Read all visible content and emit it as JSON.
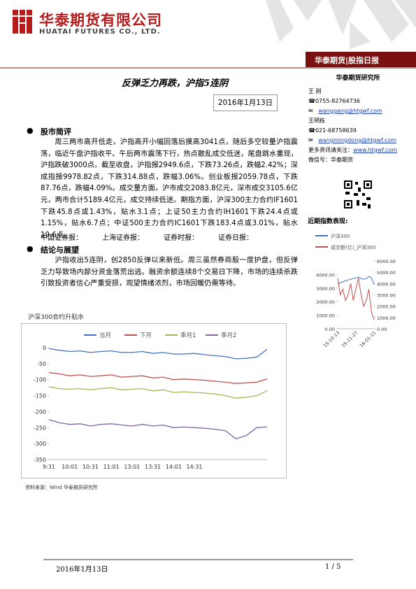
{
  "header": {
    "company": "华泰期货有限公司",
    "company_en": "HUATAI FUTURES CO., LTD.",
    "band": "华泰期货|股指日报"
  },
  "title": "反弹乏力再跌，沪指5连阴",
  "date": "2016年1月13日",
  "sections": [
    {
      "heading": "股市简评",
      "text": "周三两市高开低走，沪指高开小幅回落后摸高3041点，随后多空较量沪指震荡，临近午盘沪指收平。午后两市震荡下行，热点散乱成交低迷，尾盘跳水重现，沪指跌破3000点。截至收盘，沪指报2949.6点，下跌73.26点，跌幅2.42%；深成指报9978.82点，下跌314.88点，跌幅3.06%。创业板报2059.78点，下跌87.76点，跌幅4.09%。成交量方面，沪市成交2083.8亿元，深市成交3105.6亿元，两市合计5189.4亿元，成交持续低迷。期指方面，沪深300主力合约IF1601下跌45.8点或1.43%，贴水3.1点；上证50主力合约IH1601下跌24.4点或1.15%，贴水6.7点；中证500主力合约IC1601下跌183.4点或3.01%，贴水19.6点。"
    },
    {
      "heading": "结论与展望",
      "text": "沪指收出5连阴，创2850反弹以来新低。周三虽然券商股一度护盘，但反弹乏力导致场内部分资金落荒出逃。融资余额连续8个交易日下降，市场的连续杀跌引致投资者信心严重受损，观望情绪浓烈，市场回暖仍需等待。"
    }
  ],
  "press": [
    "中国证券报：",
    "上海证券报：",
    "证券时报：",
    "证券日报："
  ],
  "source": "资料来源：Wind  华泰期货研究所",
  "sidebar": {
    "institute": "华泰期货研究所",
    "contacts": [
      {
        "name": "王  刚",
        "phone": "0755-82764736",
        "email": "wanggang@htgwf.com"
      },
      {
        "name": "王明栋",
        "phone": "021-68758639",
        "email": "wangmingdong@htgwf.com"
      }
    ],
    "more_label": "更多资讯请关注：",
    "website": "www.htgwf.com",
    "wechat": "微信号：华泰期货",
    "index_heading": "近期指数表现:"
  },
  "footer": {
    "date": "2016年1月13日",
    "page": "1 / 5"
  },
  "chart_data": [
    {
      "type": "line",
      "title": "沪深300合约升贴水",
      "categories": [
        "9:31",
        null,
        "10:01",
        null,
        "10:31",
        null,
        "11:01",
        null,
        "13:01",
        null,
        "13:31",
        null,
        "14:01",
        null,
        "14:31",
        null,
        null,
        null,
        null,
        null,
        null,
        null
      ],
      "series": [
        {
          "name": "当月",
          "color": "#4472c4",
          "values": [
            -3,
            -8,
            -12,
            -10,
            -15,
            -12,
            -10,
            -15,
            -15,
            -12,
            -18,
            -15,
            -20,
            -20,
            -18,
            -22,
            -25,
            -28,
            -35,
            -33,
            -30,
            -5
          ]
        },
        {
          "name": "下月",
          "color": "#c0504d",
          "values": [
            -78,
            -82,
            -88,
            -85,
            -90,
            -88,
            -85,
            -92,
            -90,
            -88,
            -95,
            -92,
            -100,
            -98,
            -100,
            -102,
            -105,
            -108,
            -112,
            -110,
            -108,
            -98
          ]
        },
        {
          "name": "季月1",
          "color": "#9bbb59",
          "values": [
            -122,
            -128,
            -130,
            -128,
            -132,
            -128,
            -125,
            -132,
            -130,
            -128,
            -135,
            -132,
            -140,
            -138,
            -140,
            -142,
            -145,
            -150,
            -158,
            -155,
            -150,
            -135
          ]
        },
        {
          "name": "季月2",
          "color": "#8064a2",
          "values": [
            -225,
            -235,
            -240,
            -238,
            -245,
            -240,
            -238,
            -242,
            -245,
            -240,
            -245,
            -242,
            -250,
            -248,
            -250,
            -252,
            -255,
            -260,
            -285,
            -275,
            -250,
            -248
          ]
        }
      ],
      "ylim": [
        -350,
        0
      ],
      "yticks": [
        0,
        -50,
        -100,
        -150,
        -200,
        -250,
        -300,
        -350
      ],
      "grid": false
    },
    {
      "type": "line",
      "categories": [
        "15-10-13",
        null,
        null,
        null,
        null,
        null,
        null,
        "15-11-27",
        null,
        null,
        null,
        null,
        null,
        null,
        "16-01-11"
      ],
      "series": [
        {
          "name": "沪深300",
          "color": "#4472c4",
          "values": [
            3300,
            3400,
            3450,
            3550,
            3600,
            3650,
            3700,
            3750,
            3800,
            3700,
            3650,
            3700,
            3850,
            3750,
            3250
          ]
        },
        {
          "name": "成交额(亿)_沪深300",
          "color": "#c0504d",
          "axis": "y2",
          "values": [
            4500,
            3000,
            3500,
            2500,
            3000,
            4000,
            2500,
            3500,
            4500,
            3000,
            2000,
            2500,
            3500,
            1500,
            800
          ]
        }
      ],
      "ylim": [
        0,
        5000
      ],
      "yticks": [
        {
          "value": 0,
          "label": "0.00"
        },
        {
          "value": 1000,
          "label": "1000.00"
        },
        {
          "value": 2000,
          "label": "2000.00"
        },
        {
          "value": 3000,
          "label": "3000.00"
        },
        {
          "value": 4000,
          "label": "4000.00"
        }
      ],
      "y2lim": [
        0,
        6000
      ],
      "y2ticks": [
        {
          "value": 0,
          "label": "0.00"
        },
        {
          "value": 1000,
          "label": "1000.00"
        },
        {
          "value": 2000,
          "label": "2000.00"
        },
        {
          "value": 3000,
          "label": "3000.00"
        },
        {
          "value": 4000,
          "label": "4000.00"
        },
        {
          "value": 5000,
          "label": "5000.00"
        },
        {
          "value": 6000,
          "label": "6000.00"
        }
      ],
      "grid": false
    }
  ]
}
